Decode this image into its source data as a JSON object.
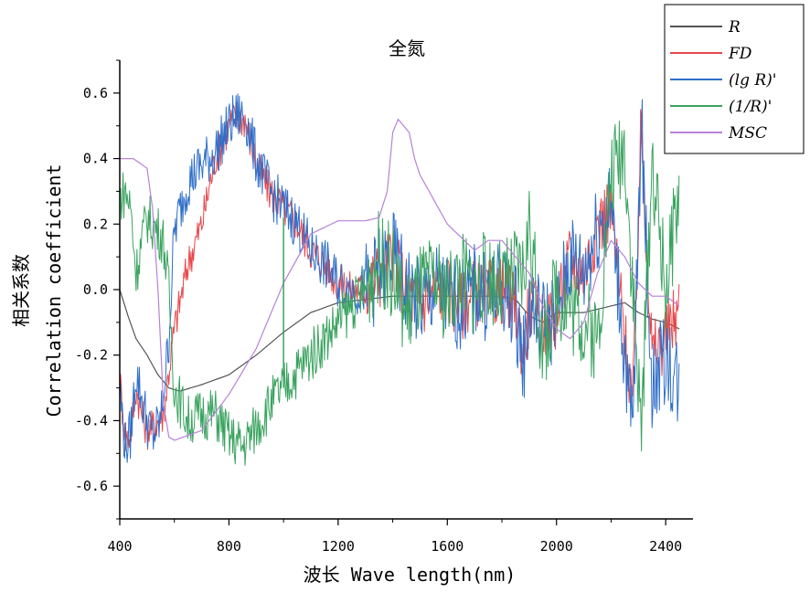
{
  "chart_data": {
    "type": "line",
    "title": "全氮",
    "xlabel": "波长 Wave length(nm)",
    "ylabel_cn": "相关系数",
    "ylabel_en": "Correlation coefficient",
    "xlim": [
      400,
      2500
    ],
    "ylim": [
      -0.7,
      0.7
    ],
    "xticks": [
      400,
      800,
      1200,
      1600,
      2000,
      2400
    ],
    "xtick_labels": [
      "400",
      "800",
      "1200",
      "1600",
      "2000",
      "2400"
    ],
    "yticks": [
      -0.6,
      -0.4,
      -0.2,
      0.0,
      0.2,
      0.4,
      0.6
    ],
    "ytick_labels": [
      "-0.6",
      "-0.4",
      "-0.2",
      "0.0",
      "0.2",
      "0.4",
      "0.6"
    ],
    "grid": false,
    "legend_position": "top-right",
    "series": [
      {
        "name": "R",
        "color": "#555555",
        "noise": 0,
        "x": [
          400,
          430,
          460,
          500,
          540,
          580,
          620,
          700,
          800,
          900,
          1000,
          1100,
          1200,
          1300,
          1400,
          1500,
          1600,
          1700,
          1800,
          1850,
          1900,
          1950,
          2000,
          2100,
          2200,
          2250,
          2300,
          2350,
          2400,
          2450
        ],
        "y": [
          0.0,
          -0.08,
          -0.15,
          -0.2,
          -0.26,
          -0.3,
          -0.31,
          -0.29,
          -0.26,
          -0.2,
          -0.13,
          -0.07,
          -0.04,
          -0.03,
          -0.02,
          -0.02,
          -0.02,
          -0.02,
          -0.02,
          -0.03,
          -0.08,
          -0.1,
          -0.07,
          -0.07,
          -0.05,
          -0.04,
          -0.07,
          -0.09,
          -0.1,
          -0.12
        ]
      },
      {
        "name": "FD",
        "color": "#e8474a",
        "noise": 0.06,
        "x": [
          400,
          420,
          440,
          460,
          480,
          500,
          520,
          560,
          600,
          650,
          700,
          750,
          800,
          830,
          860,
          900,
          950,
          1000,
          1050,
          1100,
          1150,
          1200,
          1250,
          1300,
          1350,
          1400,
          1450,
          1500,
          1550,
          1600,
          1650,
          1700,
          1750,
          1800,
          1850,
          1880,
          1900,
          1950,
          2000,
          2050,
          2100,
          2150,
          2200,
          2250,
          2280,
          2310,
          2350,
          2400,
          2450
        ],
        "y": [
          -0.27,
          -0.46,
          -0.44,
          -0.3,
          -0.38,
          -0.43,
          -0.42,
          -0.38,
          -0.12,
          0.08,
          0.2,
          0.4,
          0.5,
          0.53,
          0.52,
          0.38,
          0.3,
          0.25,
          0.2,
          0.12,
          0.08,
          0.02,
          0.0,
          0.0,
          0.05,
          0.1,
          0.0,
          -0.05,
          0.0,
          0.0,
          -0.05,
          0.0,
          -0.02,
          0.0,
          -0.05,
          -0.2,
          -0.05,
          -0.1,
          -0.08,
          0.1,
          0.05,
          0.2,
          0.25,
          -0.15,
          -0.35,
          0.5,
          -0.2,
          -0.15,
          -0.05
        ]
      },
      {
        "name": "(lg R)'",
        "color": "#2f6fca",
        "noise": 0.08,
        "x": [
          400,
          420,
          440,
          460,
          480,
          500,
          520,
          550,
          580,
          600,
          650,
          700,
          750,
          800,
          830,
          860,
          900,
          950,
          1000,
          1050,
          1100,
          1150,
          1200,
          1250,
          1300,
          1350,
          1400,
          1450,
          1500,
          1550,
          1600,
          1650,
          1700,
          1750,
          1800,
          1850,
          1880,
          1900,
          1950,
          2000,
          2050,
          2100,
          2150,
          2200,
          2250,
          2280,
          2310,
          2350,
          2400,
          2450
        ],
        "y": [
          -0.3,
          -0.48,
          -0.44,
          -0.25,
          -0.33,
          -0.4,
          -0.45,
          -0.4,
          -0.15,
          0.18,
          0.33,
          0.38,
          0.42,
          0.5,
          0.53,
          0.53,
          0.4,
          0.3,
          0.25,
          0.2,
          0.12,
          0.08,
          0.02,
          0.0,
          0.0,
          0.05,
          0.1,
          0.0,
          -0.05,
          0.0,
          -0.02,
          -0.05,
          0.0,
          -0.02,
          0.0,
          -0.05,
          -0.22,
          -0.05,
          -0.1,
          -0.08,
          0.1,
          0.05,
          0.2,
          0.25,
          -0.2,
          -0.45,
          0.52,
          -0.3,
          -0.2,
          -0.3
        ]
      },
      {
        "name": "(1/R)'",
        "color": "#3aa35f",
        "noise": 0.08,
        "x": [
          400,
          420,
          440,
          460,
          480,
          500,
          520,
          540,
          560,
          580,
          600,
          650,
          700,
          750,
          800,
          850,
          900,
          950,
          1000,
          1050,
          1100,
          1150,
          1200,
          1250,
          1300,
          1350,
          1400,
          1450,
          1500,
          1550,
          1600,
          1650,
          1700,
          1750,
          1800,
          1850,
          1880,
          1900,
          1950,
          2000,
          2050,
          2100,
          2150,
          2200,
          2250,
          2280,
          2310,
          2350,
          2400,
          2450
        ],
        "y": [
          0.28,
          0.3,
          0.25,
          0.05,
          0.15,
          0.22,
          0.2,
          0.18,
          0.15,
          0.0,
          -0.3,
          -0.4,
          -0.38,
          -0.38,
          -0.45,
          -0.48,
          -0.42,
          -0.35,
          -0.3,
          -0.25,
          -0.2,
          -0.15,
          -0.1,
          -0.05,
          0.0,
          0.1,
          0.05,
          -0.08,
          0.0,
          0.02,
          -0.02,
          0.05,
          0.0,
          0.05,
          0.0,
          0.05,
          0.05,
          0.2,
          -0.2,
          0.0,
          -0.05,
          -0.1,
          -0.15,
          0.35,
          0.45,
          0.0,
          -0.45,
          0.4,
          0.0,
          0.3
        ]
      },
      {
        "name": "MSC",
        "color": "#b782d8",
        "noise": 0,
        "x": [
          400,
          450,
          500,
          520,
          540,
          560,
          580,
          600,
          700,
          800,
          900,
          1000,
          1100,
          1200,
          1300,
          1350,
          1380,
          1400,
          1420,
          1440,
          1460,
          1480,
          1500,
          1600,
          1700,
          1750,
          1800,
          1850,
          1900,
          1950,
          2000,
          2050,
          2100,
          2150,
          2200,
          2250,
          2300,
          2350,
          2400,
          2450
        ],
        "y": [
          0.4,
          0.4,
          0.37,
          0.25,
          0.0,
          -0.35,
          -0.45,
          -0.46,
          -0.43,
          -0.32,
          -0.18,
          0.02,
          0.17,
          0.21,
          0.21,
          0.22,
          0.3,
          0.48,
          0.52,
          0.5,
          0.48,
          0.4,
          0.35,
          0.2,
          0.12,
          0.15,
          0.15,
          0.1,
          0.05,
          -0.05,
          -0.12,
          -0.15,
          -0.1,
          0.05,
          0.15,
          0.1,
          0.02,
          -0.02,
          -0.02,
          -0.05
        ]
      }
    ]
  }
}
